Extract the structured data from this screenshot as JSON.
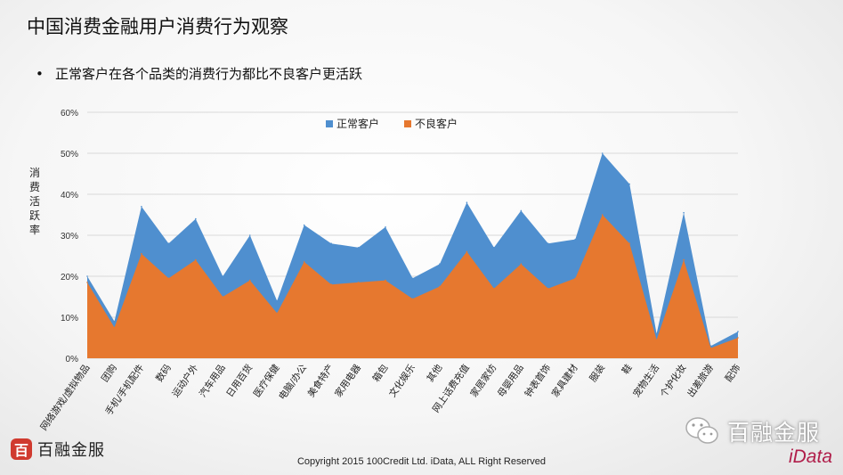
{
  "title": "中国消费金融用户消费行为观察",
  "bullet": "正常客户在各个品类的消费行为都比不良客户更活跃",
  "footer": {
    "logo_text": "百融金服",
    "logo_glyph": "百",
    "copyright": "Copyright 2015 100Credit Ltd. iData, ALL Right Reserved",
    "brand": "百融金服",
    "idata": "iData"
  },
  "colors": {
    "normal": "#4f8fcf",
    "bad": "#e6782f",
    "gridline": "#d9d9d9",
    "logo": "#d03a2f",
    "idata": "#b01e4a"
  },
  "icons": [
    "wechat-icon",
    "logo-mark-icon"
  ],
  "chart_data": {
    "type": "area",
    "title": "",
    "xlabel": "",
    "ylabel": "消费活跃率",
    "ylim": [
      0,
      60
    ],
    "yticks": [
      0,
      10,
      20,
      30,
      40,
      50,
      60
    ],
    "ytick_labels": [
      "0%",
      "10%",
      "20%",
      "30%",
      "40%",
      "50%",
      "60%"
    ],
    "grid": true,
    "legend_position": "top-center",
    "categories": [
      "网络游戏/虚拟物品",
      "团购",
      "手机/手机配件",
      "数码",
      "运动户外",
      "汽车用品",
      "日用百货",
      "医疗保健",
      "电脑/办公",
      "美食特产",
      "家用电器",
      "箱包",
      "文化娱乐",
      "其他",
      "网上话费充值",
      "家居家纺",
      "母婴用品",
      "钟表首饰",
      "家具建材",
      "服装",
      "鞋",
      "宠物生活",
      "个护化妆",
      "出差旅游",
      "配饰"
    ],
    "series": [
      {
        "name": "正常客户",
        "values": [
          20,
          9,
          37,
          28,
          34,
          20,
          30,
          14,
          32.5,
          28,
          27,
          32,
          19.5,
          23,
          38,
          27,
          36,
          28,
          29,
          50,
          42.5,
          6,
          35.5,
          3,
          6.5
        ]
      },
      {
        "name": "不良客户",
        "values": [
          18.5,
          7.5,
          25.5,
          19.5,
          24,
          15,
          19,
          11,
          23.5,
          18,
          18.5,
          19,
          14.5,
          17.5,
          26,
          17,
          23,
          17,
          19.5,
          35,
          28,
          4.5,
          24,
          2.5,
          5
        ]
      }
    ]
  }
}
